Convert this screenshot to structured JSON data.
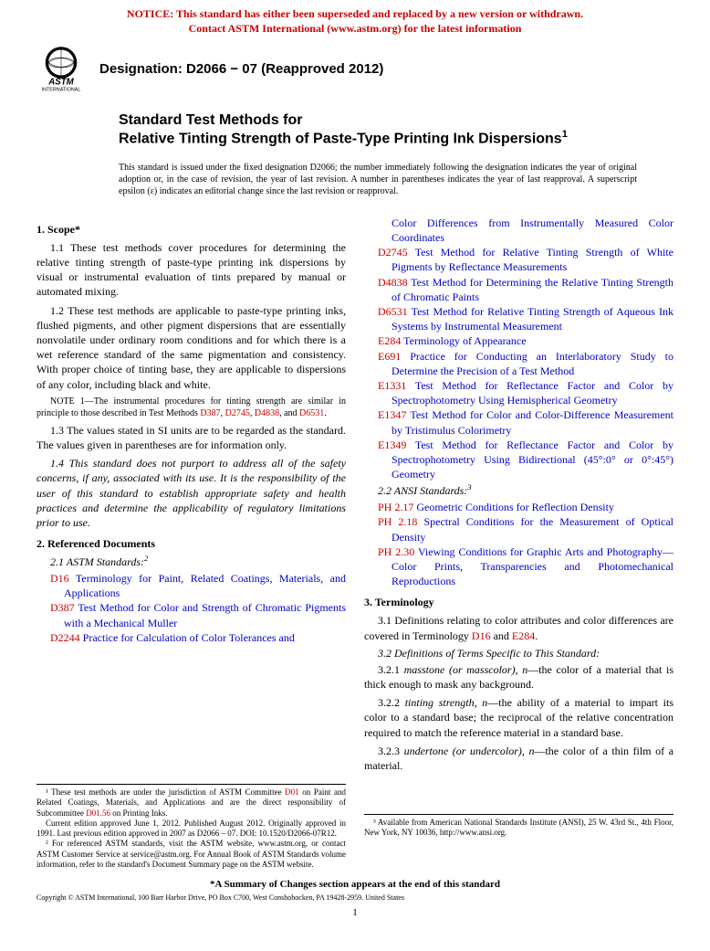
{
  "notice": {
    "line1": "NOTICE: This standard has either been superseded and replaced by a new version or withdrawn.",
    "line2": "Contact ASTM International (www.astm.org) for the latest information"
  },
  "logo_text": {
    "astm": "ASTM",
    "intl": "INTERNATIONAL"
  },
  "designation": "Designation: D2066 − 07 (Reapproved 2012)",
  "title": {
    "pre": "Standard Test Methods for",
    "main": "Relative Tinting Strength of Paste-Type Printing Ink Dispersions",
    "sup": "1"
  },
  "disclaimer": "This standard is issued under the fixed designation D2066; the number immediately following the designation indicates the year of original adoption or, in the case of revision, the year of last revision. A number in parentheses indicates the year of last reapproval. A superscript epsilon (ε) indicates an editorial change since the last revision or reapproval.",
  "s1": {
    "head": "1. Scope*",
    "p1": "1.1 These test methods cover procedures for determining the relative tinting strength of paste-type printing ink dispersions by visual or instrumental evaluation of tints prepared by manual or automated mixing.",
    "p2": "1.2 These test methods are applicable to paste-type printing inks, flushed pigments, and other pigment dispersions that are essentially nonvolatile under ordinary room conditions and for which there is a wet reference standard of the same pigmentation and consistency. With proper choice of tinting base, they are applicable to dispersions of any color, including black and white.",
    "note1_a": "NOTE 1—The instrumental procedures for tinting strength are similar in principle to those described in Test Methods ",
    "note1_b": ", and ",
    "note1_c": ".",
    "p3": "1.3 The values stated in SI units are to be regarded as the standard. The values given in parentheses are for information only.",
    "p4": "1.4 This standard does not purport to address all of the safety concerns, if any, associated with its use. It is the responsibility of the user of this standard to establish appropriate safety and health practices and determine the applicability of regulatory limitations prior to use."
  },
  "s2": {
    "head": "2. Referenced Documents",
    "sub1": "2.1 ASTM Standards:",
    "sup": "2",
    "refs": [
      {
        "code": "D16",
        "text": "Terminology for Paint, Related Coatings, Materials, and Applications"
      },
      {
        "code": "D387",
        "text": "Test Method for Color and Strength of Chromatic Pigments with a Mechanical Muller"
      },
      {
        "code": "D2244",
        "text": "Practice for Calculation of Color Tolerances and "
      }
    ],
    "refs2head": "Color Differences from Instrumentally Measured Color Coordinates",
    "refs2": [
      {
        "code": "D2745",
        "text": "Test Method for Relative Tinting Strength of White Pigments by Reflectance Measurements"
      },
      {
        "code": "D4838",
        "text": "Test Method for Determining the Relative Tinting Strength of Chromatic Paints"
      },
      {
        "code": "D6531",
        "text": "Test Method for Relative Tinting Strength of Aqueous Ink Systems by Instrumental Measurement"
      },
      {
        "code": "E284",
        "text": "Terminology of Appearance"
      },
      {
        "code": "E691",
        "text": "Practice for Conducting an Interlaboratory Study to Determine the Precision of a Test Method"
      },
      {
        "code": "E1331",
        "text": "Test Method for Reflectance Factor and Color by Spectrophotometry Using Hemispherical Geometry"
      },
      {
        "code": "E1347",
        "text": "Test Method for Color and Color-Difference Measurement by Tristimulus Colorimetry"
      },
      {
        "code": "E1349",
        "text": "Test Method for Reflectance Factor and Color by Spectrophotometry Using Bidirectional (45°:0° or 0°:45°) Geometry"
      }
    ],
    "sub2": "2.2 ANSI Standards:",
    "sup2": "3",
    "refs3": [
      {
        "code": "PH 2.17",
        "text": "Geometric Conditions for Reflection Density"
      },
      {
        "code": "PH 2.18",
        "text": "Spectral Conditions for the Measurement of Optical Density"
      },
      {
        "code": "PH 2.30",
        "text": "Viewing Conditions for Graphic Arts and Photography—Color Prints, Transparencies and Photomechanical Reproductions"
      }
    ]
  },
  "s3": {
    "head": "3. Terminology",
    "p1_a": "3.1 Definitions relating to color attributes and color differences are covered in Terminology ",
    "p1_b": " and ",
    "p1_c": ".",
    "sub1": "3.2 Definitions of Terms Specific to This Standard:",
    "p2": "3.2.1 masstone (or masscolor), n—the color of a material that is thick enough to mask any background.",
    "p3": "3.2.2 tinting strength, n—the ability of a material to impart its color to a standard base; the reciprocal of the relative concentration required to match the reference material in a standard base.",
    "p4": "3.2.3 undertone (or undercolor), n—the color of a thin film of a material."
  },
  "note_links": {
    "d387": "D387",
    "d2745": "D2745",
    "d4838": "D4838",
    "d6531": "D6531",
    "d16": "D16",
    "e284": "E284"
  },
  "fn": {
    "f1a": "¹ These test methods are under the jurisdiction of ASTM Committee ",
    "f1_link1": "D01",
    "f1b": " on Paint and Related Coatings, Materials, and Applications and are the direct responsibility of Subcommittee ",
    "f1_link2": "D01.56",
    "f1c": " on Printing Inks.",
    "f1d": "Current edition approved June 1, 2012. Published August 2012. Originally approved in 1991. Last previous edition approved in 2007 as D2066 – 07. DOI: 10.1520/D2066-07R12.",
    "f2": "² For referenced ASTM standards, visit the ASTM website, www.astm.org, or contact ASTM Customer Service at service@astm.org. For Annual Book of ASTM Standards volume information, refer to the standard's Document Summary page on the ASTM website.",
    "f3": "³ Available from American National Standards Institute (ANSI), 25 W. 43rd St., 4th Floor, New York, NY 10036, http://www.ansi.org."
  },
  "summary": "*A Summary of Changes section appears at the end of this standard",
  "copyright": "Copyright © ASTM International, 100 Barr Harbor Drive, PO Box C700, West Conshohocken, PA 19428-2959. United States",
  "pagenum": "1",
  "style": {
    "link_color": "#0000cc",
    "code_color": "#cc0000",
    "notice_color": "#cc0000"
  }
}
